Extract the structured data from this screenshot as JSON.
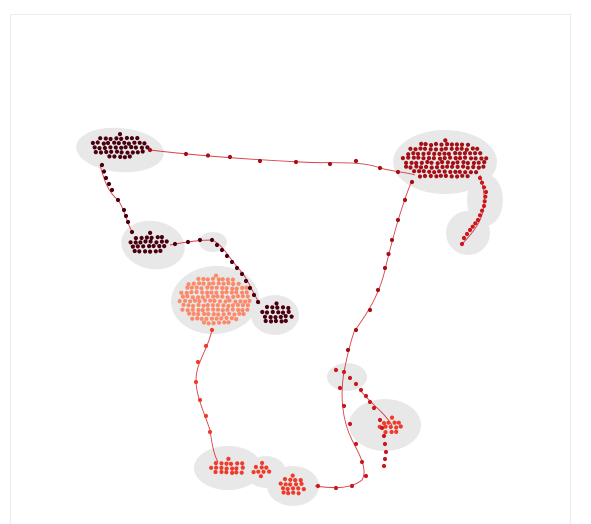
{
  "colors": {
    "background": "#ffffff",
    "frame": "#ececec",
    "halo": "#e8e8e8",
    "edge": "#d0202a",
    "dark_maroon": "#4a0010",
    "crimson": "#a50f15",
    "red": "#cb181d",
    "orange_red": "#ef3b2c",
    "salmon": "#fc8a6a"
  }
}
